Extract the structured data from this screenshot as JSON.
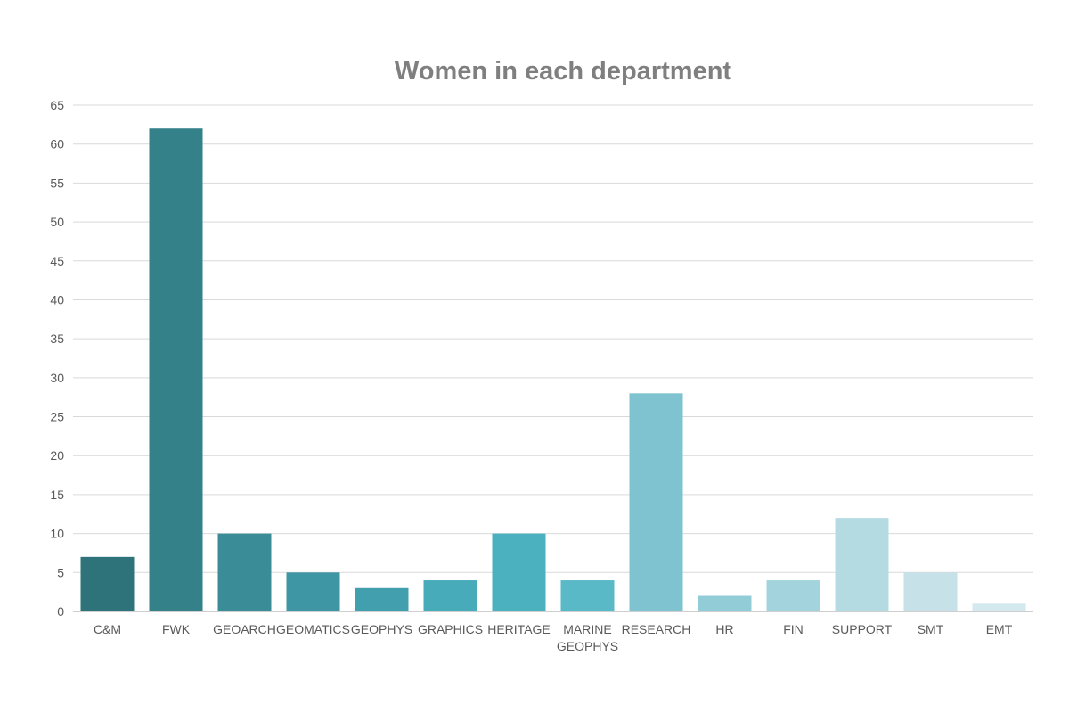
{
  "chart_data": {
    "type": "bar",
    "title": "Women in each department",
    "xlabel": "",
    "ylabel": "",
    "ylim": [
      0,
      65
    ],
    "yticks": [
      0,
      5,
      10,
      15,
      20,
      25,
      30,
      35,
      40,
      45,
      50,
      55,
      60,
      65
    ],
    "grid": true,
    "categories": [
      "C&M",
      "FWK",
      "GEOARCH",
      "GEOMATICS",
      "GEOPHYS",
      "GRAPHICS",
      "HERITAGE",
      "MARINE GEOPHYS",
      "RESEARCH",
      "HR",
      "FIN",
      "SUPPORT",
      "SMT",
      "EMT"
    ],
    "category_label_lines": [
      [
        "C&M"
      ],
      [
        "FWK"
      ],
      [
        "GEOARCH"
      ],
      [
        "GEOMATICS"
      ],
      [
        "GEOPHYS"
      ],
      [
        "GRAPHICS"
      ],
      [
        "HERITAGE"
      ],
      [
        "MARINE",
        "GEOPHYS"
      ],
      [
        "RESEARCH"
      ],
      [
        "HR"
      ],
      [
        "FIN"
      ],
      [
        "SUPPORT"
      ],
      [
        "SMT"
      ],
      [
        "EMT"
      ]
    ],
    "values": [
      7,
      62,
      10,
      5,
      3,
      4,
      10,
      4,
      28,
      2,
      4,
      12,
      5,
      1
    ],
    "colors": [
      "#2e7379",
      "#34818a",
      "#3a8c96",
      "#3e96a4",
      "#42a0ae",
      "#47abba",
      "#4cb1bf",
      "#5ab9c7",
      "#7ec3cf",
      "#92ccd7",
      "#a3d4dd",
      "#b5dbe2",
      "#c6e2e8",
      "#d4e9ee"
    ],
    "grid_color": "#d9d9d9",
    "axis_color": "#bfbfbf"
  }
}
